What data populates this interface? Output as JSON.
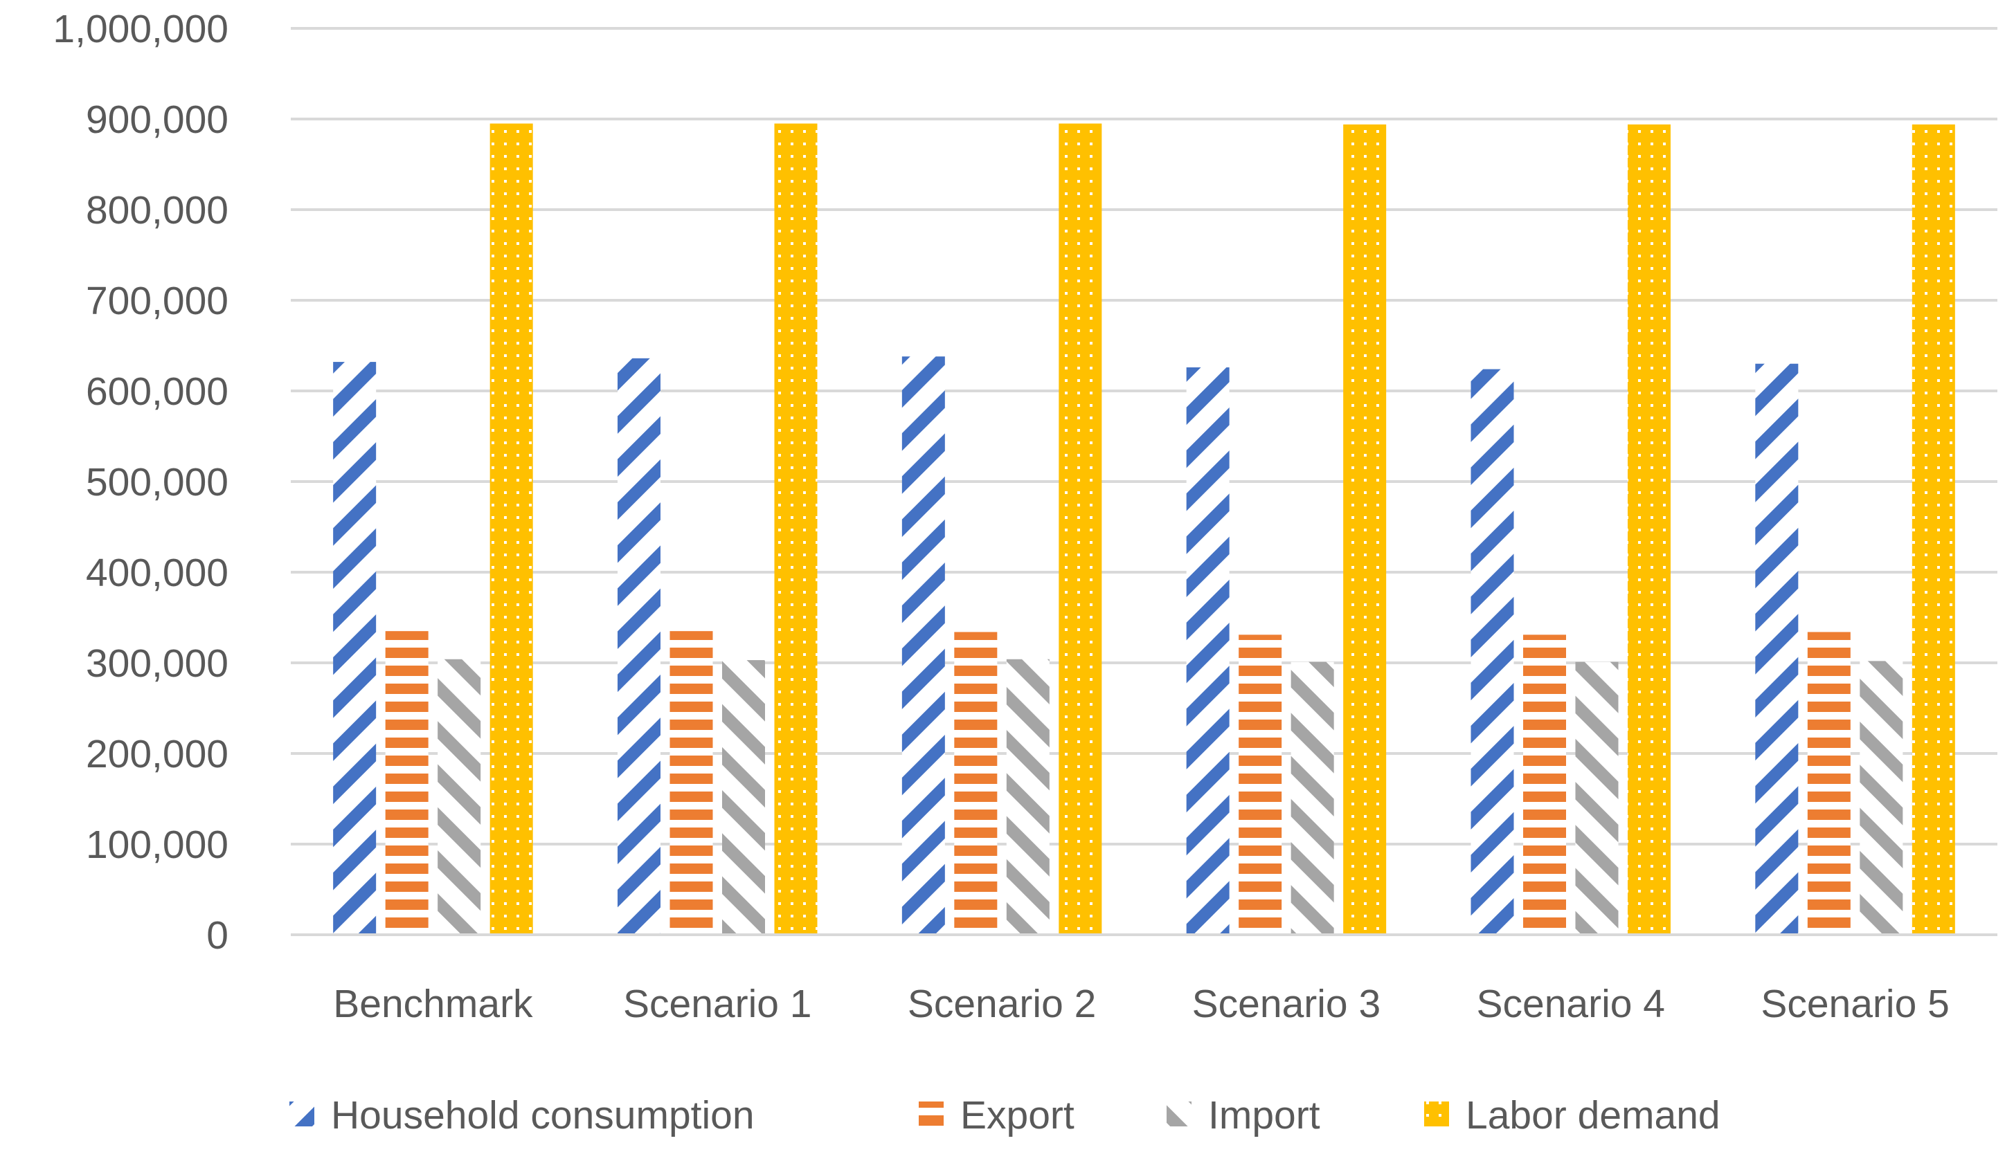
{
  "chart_data": {
    "type": "bar",
    "title": "",
    "xlabel": "",
    "ylabel": "",
    "ylim": [
      0,
      1000000
    ],
    "yticks": [
      0,
      100000,
      200000,
      300000,
      400000,
      500000,
      600000,
      700000,
      800000,
      900000,
      1000000
    ],
    "ytick_labels": [
      "0",
      "100,000",
      "200,000",
      "300,000",
      "400,000",
      "500,000",
      "600,000",
      "700,000",
      "800,000",
      "900,000",
      "1,000,000"
    ],
    "grid": true,
    "legend_position": "bottom",
    "categories": [
      "Benchmark",
      "Scenario 1",
      "Scenario 2",
      "Scenario 3",
      "Scenario 4",
      "Scenario 5"
    ],
    "series": [
      {
        "name": "Household consumption",
        "color": "#4472C4",
        "pattern": "wide-upward-diagonal",
        "values": [
          632000,
          636000,
          638000,
          626000,
          624000,
          630000
        ]
      },
      {
        "name": "Export",
        "color": "#ED7D31",
        "pattern": "horizontal-stripes",
        "values": [
          335000,
          335000,
          334000,
          331000,
          331000,
          334000
        ]
      },
      {
        "name": "Import",
        "color": "#A5A5A5",
        "pattern": "wide-downward-diagonal",
        "values": [
          304000,
          303000,
          304000,
          301000,
          301000,
          302000
        ]
      },
      {
        "name": "Labor demand",
        "color": "#FFC000",
        "pattern": "dotted",
        "values": [
          895000,
          895000,
          895000,
          894000,
          894000,
          894000
        ]
      }
    ]
  }
}
